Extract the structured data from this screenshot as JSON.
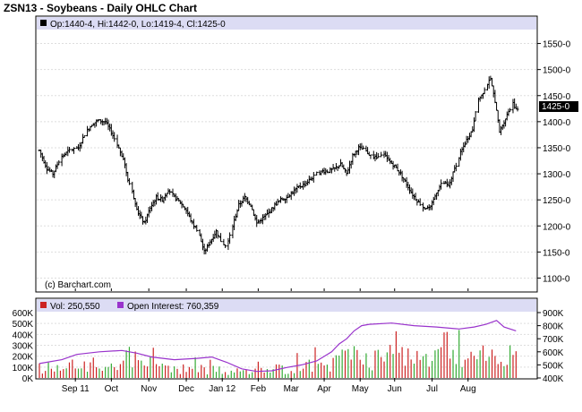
{
  "chart_data": {
    "type": "ohlc",
    "title": "ZSN13 - Soybeans - Daily OHLC Chart",
    "watermark": "(c) Barchart.com",
    "price_panel": {
      "legend": "Op:1440-4, Hi:1442-0, Lo:1419-4, Cl:1425-0",
      "last_price_label": "1425-0",
      "ylim": [
        1075,
        1575
      ],
      "yticks": [
        "1550-0",
        "1500-0",
        "1450-0",
        "1400-0",
        "1350-0",
        "1300-0",
        "1250-0",
        "1200-0",
        "1150-0",
        "1100-0"
      ],
      "ytick_values": [
        1550,
        1500,
        1450,
        1400,
        1350,
        1300,
        1250,
        1200,
        1150,
        1100
      ],
      "series": [
        {
          "x": 0,
          "y": 1345
        },
        {
          "x": 5,
          "y": 1310
        },
        {
          "x": 9,
          "y": 1300
        },
        {
          "x": 14,
          "y": 1330
        },
        {
          "x": 20,
          "y": 1345
        },
        {
          "x": 26,
          "y": 1350
        },
        {
          "x": 30,
          "y": 1375
        },
        {
          "x": 35,
          "y": 1395
        },
        {
          "x": 39,
          "y": 1402
        },
        {
          "x": 44,
          "y": 1400
        },
        {
          "x": 48,
          "y": 1380
        },
        {
          "x": 52,
          "y": 1355
        },
        {
          "x": 56,
          "y": 1330
        },
        {
          "x": 59,
          "y": 1290
        },
        {
          "x": 62,
          "y": 1265
        },
        {
          "x": 66,
          "y": 1225
        },
        {
          "x": 70,
          "y": 1205
        },
        {
          "x": 74,
          "y": 1235
        },
        {
          "x": 78,
          "y": 1255
        },
        {
          "x": 82,
          "y": 1250
        },
        {
          "x": 86,
          "y": 1270
        },
        {
          "x": 90,
          "y": 1255
        },
        {
          "x": 94,
          "y": 1245
        },
        {
          "x": 98,
          "y": 1230
        },
        {
          "x": 102,
          "y": 1205
        },
        {
          "x": 106,
          "y": 1190
        },
        {
          "x": 110,
          "y": 1150
        },
        {
          "x": 114,
          "y": 1170
        },
        {
          "x": 118,
          "y": 1190
        },
        {
          "x": 122,
          "y": 1165
        },
        {
          "x": 125,
          "y": 1160
        },
        {
          "x": 129,
          "y": 1200
        },
        {
          "x": 133,
          "y": 1240
        },
        {
          "x": 137,
          "y": 1255
        },
        {
          "x": 141,
          "y": 1240
        },
        {
          "x": 145,
          "y": 1205
        },
        {
          "x": 149,
          "y": 1215
        },
        {
          "x": 153,
          "y": 1225
        },
        {
          "x": 157,
          "y": 1240
        },
        {
          "x": 161,
          "y": 1250
        },
        {
          "x": 165,
          "y": 1255
        },
        {
          "x": 169,
          "y": 1265
        },
        {
          "x": 173,
          "y": 1275
        },
        {
          "x": 177,
          "y": 1280
        },
        {
          "x": 181,
          "y": 1290
        },
        {
          "x": 185,
          "y": 1300
        },
        {
          "x": 189,
          "y": 1305
        },
        {
          "x": 193,
          "y": 1305
        },
        {
          "x": 197,
          "y": 1310
        },
        {
          "x": 201,
          "y": 1318
        },
        {
          "x": 205,
          "y": 1300
        },
        {
          "x": 209,
          "y": 1335
        },
        {
          "x": 213,
          "y": 1350
        },
        {
          "x": 217,
          "y": 1345
        },
        {
          "x": 221,
          "y": 1335
        },
        {
          "x": 225,
          "y": 1330
        },
        {
          "x": 229,
          "y": 1340
        },
        {
          "x": 233,
          "y": 1325
        },
        {
          "x": 237,
          "y": 1315
        },
        {
          "x": 241,
          "y": 1300
        },
        {
          "x": 245,
          "y": 1280
        },
        {
          "x": 249,
          "y": 1260
        },
        {
          "x": 253,
          "y": 1245
        },
        {
          "x": 257,
          "y": 1235
        },
        {
          "x": 261,
          "y": 1235
        },
        {
          "x": 265,
          "y": 1265
        },
        {
          "x": 269,
          "y": 1285
        },
        {
          "x": 273,
          "y": 1275
        },
        {
          "x": 277,
          "y": 1310
        },
        {
          "x": 281,
          "y": 1340
        },
        {
          "x": 285,
          "y": 1365
        },
        {
          "x": 289,
          "y": 1385
        },
        {
          "x": 292,
          "y": 1440
        },
        {
          "x": 295,
          "y": 1450
        },
        {
          "x": 298,
          "y": 1470
        },
        {
          "x": 301,
          "y": 1480
        },
        {
          "x": 304,
          "y": 1440
        },
        {
          "x": 307,
          "y": 1380
        },
        {
          "x": 310,
          "y": 1400
        },
        {
          "x": 313,
          "y": 1420
        },
        {
          "x": 316,
          "y": 1435
        },
        {
          "x": 318,
          "y": 1425
        }
      ]
    },
    "volume_panel": {
      "legend_volume": "Vol: 250,550",
      "legend_oi": "Open Interest: 760,359",
      "volume_color": "#cc2222",
      "oi_color": "#9933cc",
      "left_ylim": [
        0,
        600000
      ],
      "left_yticks": [
        "600K",
        "500K",
        "400K",
        "300K",
        "200K",
        "100K",
        "0K"
      ],
      "left_ytick_values": [
        600000,
        500000,
        400000,
        300000,
        200000,
        100000,
        0
      ],
      "right_ylim": [
        400000,
        900000
      ],
      "right_yticks": [
        "900K",
        "800K",
        "700K",
        "600K",
        "500K",
        "400K"
      ],
      "right_ytick_values": [
        900000,
        800000,
        700000,
        600000,
        500000,
        400000
      ],
      "volume_profile": [
        {
          "x": 0,
          "y": 95000
        },
        {
          "x": 30,
          "y": 115000
        },
        {
          "x": 50,
          "y": 140000
        },
        {
          "x": 60,
          "y": 190000
        },
        {
          "x": 80,
          "y": 110000
        },
        {
          "x": 110,
          "y": 80000
        },
        {
          "x": 130,
          "y": 60000
        },
        {
          "x": 150,
          "y": 70000
        },
        {
          "x": 170,
          "y": 100000
        },
        {
          "x": 190,
          "y": 140000
        },
        {
          "x": 210,
          "y": 200000
        },
        {
          "x": 230,
          "y": 200000
        },
        {
          "x": 260,
          "y": 180000
        },
        {
          "x": 290,
          "y": 210000
        },
        {
          "x": 318,
          "y": 230000
        }
      ],
      "open_interest": [
        {
          "x": 0,
          "y": 510000
        },
        {
          "x": 15,
          "y": 540000
        },
        {
          "x": 25,
          "y": 580000
        },
        {
          "x": 40,
          "y": 600000
        },
        {
          "x": 55,
          "y": 610000
        },
        {
          "x": 65,
          "y": 590000
        },
        {
          "x": 75,
          "y": 560000
        },
        {
          "x": 90,
          "y": 540000
        },
        {
          "x": 105,
          "y": 550000
        },
        {
          "x": 115,
          "y": 560000
        },
        {
          "x": 125,
          "y": 520000
        },
        {
          "x": 135,
          "y": 470000
        },
        {
          "x": 145,
          "y": 450000
        },
        {
          "x": 155,
          "y": 455000
        },
        {
          "x": 165,
          "y": 480000
        },
        {
          "x": 175,
          "y": 500000
        },
        {
          "x": 185,
          "y": 530000
        },
        {
          "x": 195,
          "y": 600000
        },
        {
          "x": 200,
          "y": 660000
        },
        {
          "x": 205,
          "y": 700000
        },
        {
          "x": 210,
          "y": 760000
        },
        {
          "x": 215,
          "y": 800000
        },
        {
          "x": 220,
          "y": 810000
        },
        {
          "x": 235,
          "y": 820000
        },
        {
          "x": 250,
          "y": 800000
        },
        {
          "x": 265,
          "y": 790000
        },
        {
          "x": 280,
          "y": 775000
        },
        {
          "x": 290,
          "y": 790000
        },
        {
          "x": 298,
          "y": 810000
        },
        {
          "x": 305,
          "y": 840000
        },
        {
          "x": 310,
          "y": 790000
        },
        {
          "x": 318,
          "y": 760000
        }
      ]
    },
    "x_axis": {
      "n_days": 320,
      "labels": [
        {
          "x": 24,
          "label": "Sep 11"
        },
        {
          "x": 48,
          "label": "Oct"
        },
        {
          "x": 73,
          "label": "Nov"
        },
        {
          "x": 98,
          "label": "Dec"
        },
        {
          "x": 122,
          "label": "Jan 12"
        },
        {
          "x": 146,
          "label": "Feb"
        },
        {
          "x": 168,
          "label": "Mar"
        },
        {
          "x": 190,
          "label": "Apr"
        },
        {
          "x": 214,
          "label": "May"
        },
        {
          "x": 237,
          "label": "Jun"
        },
        {
          "x": 262,
          "label": "Jul"
        },
        {
          "x": 286,
          "label": "Aug"
        }
      ]
    }
  }
}
